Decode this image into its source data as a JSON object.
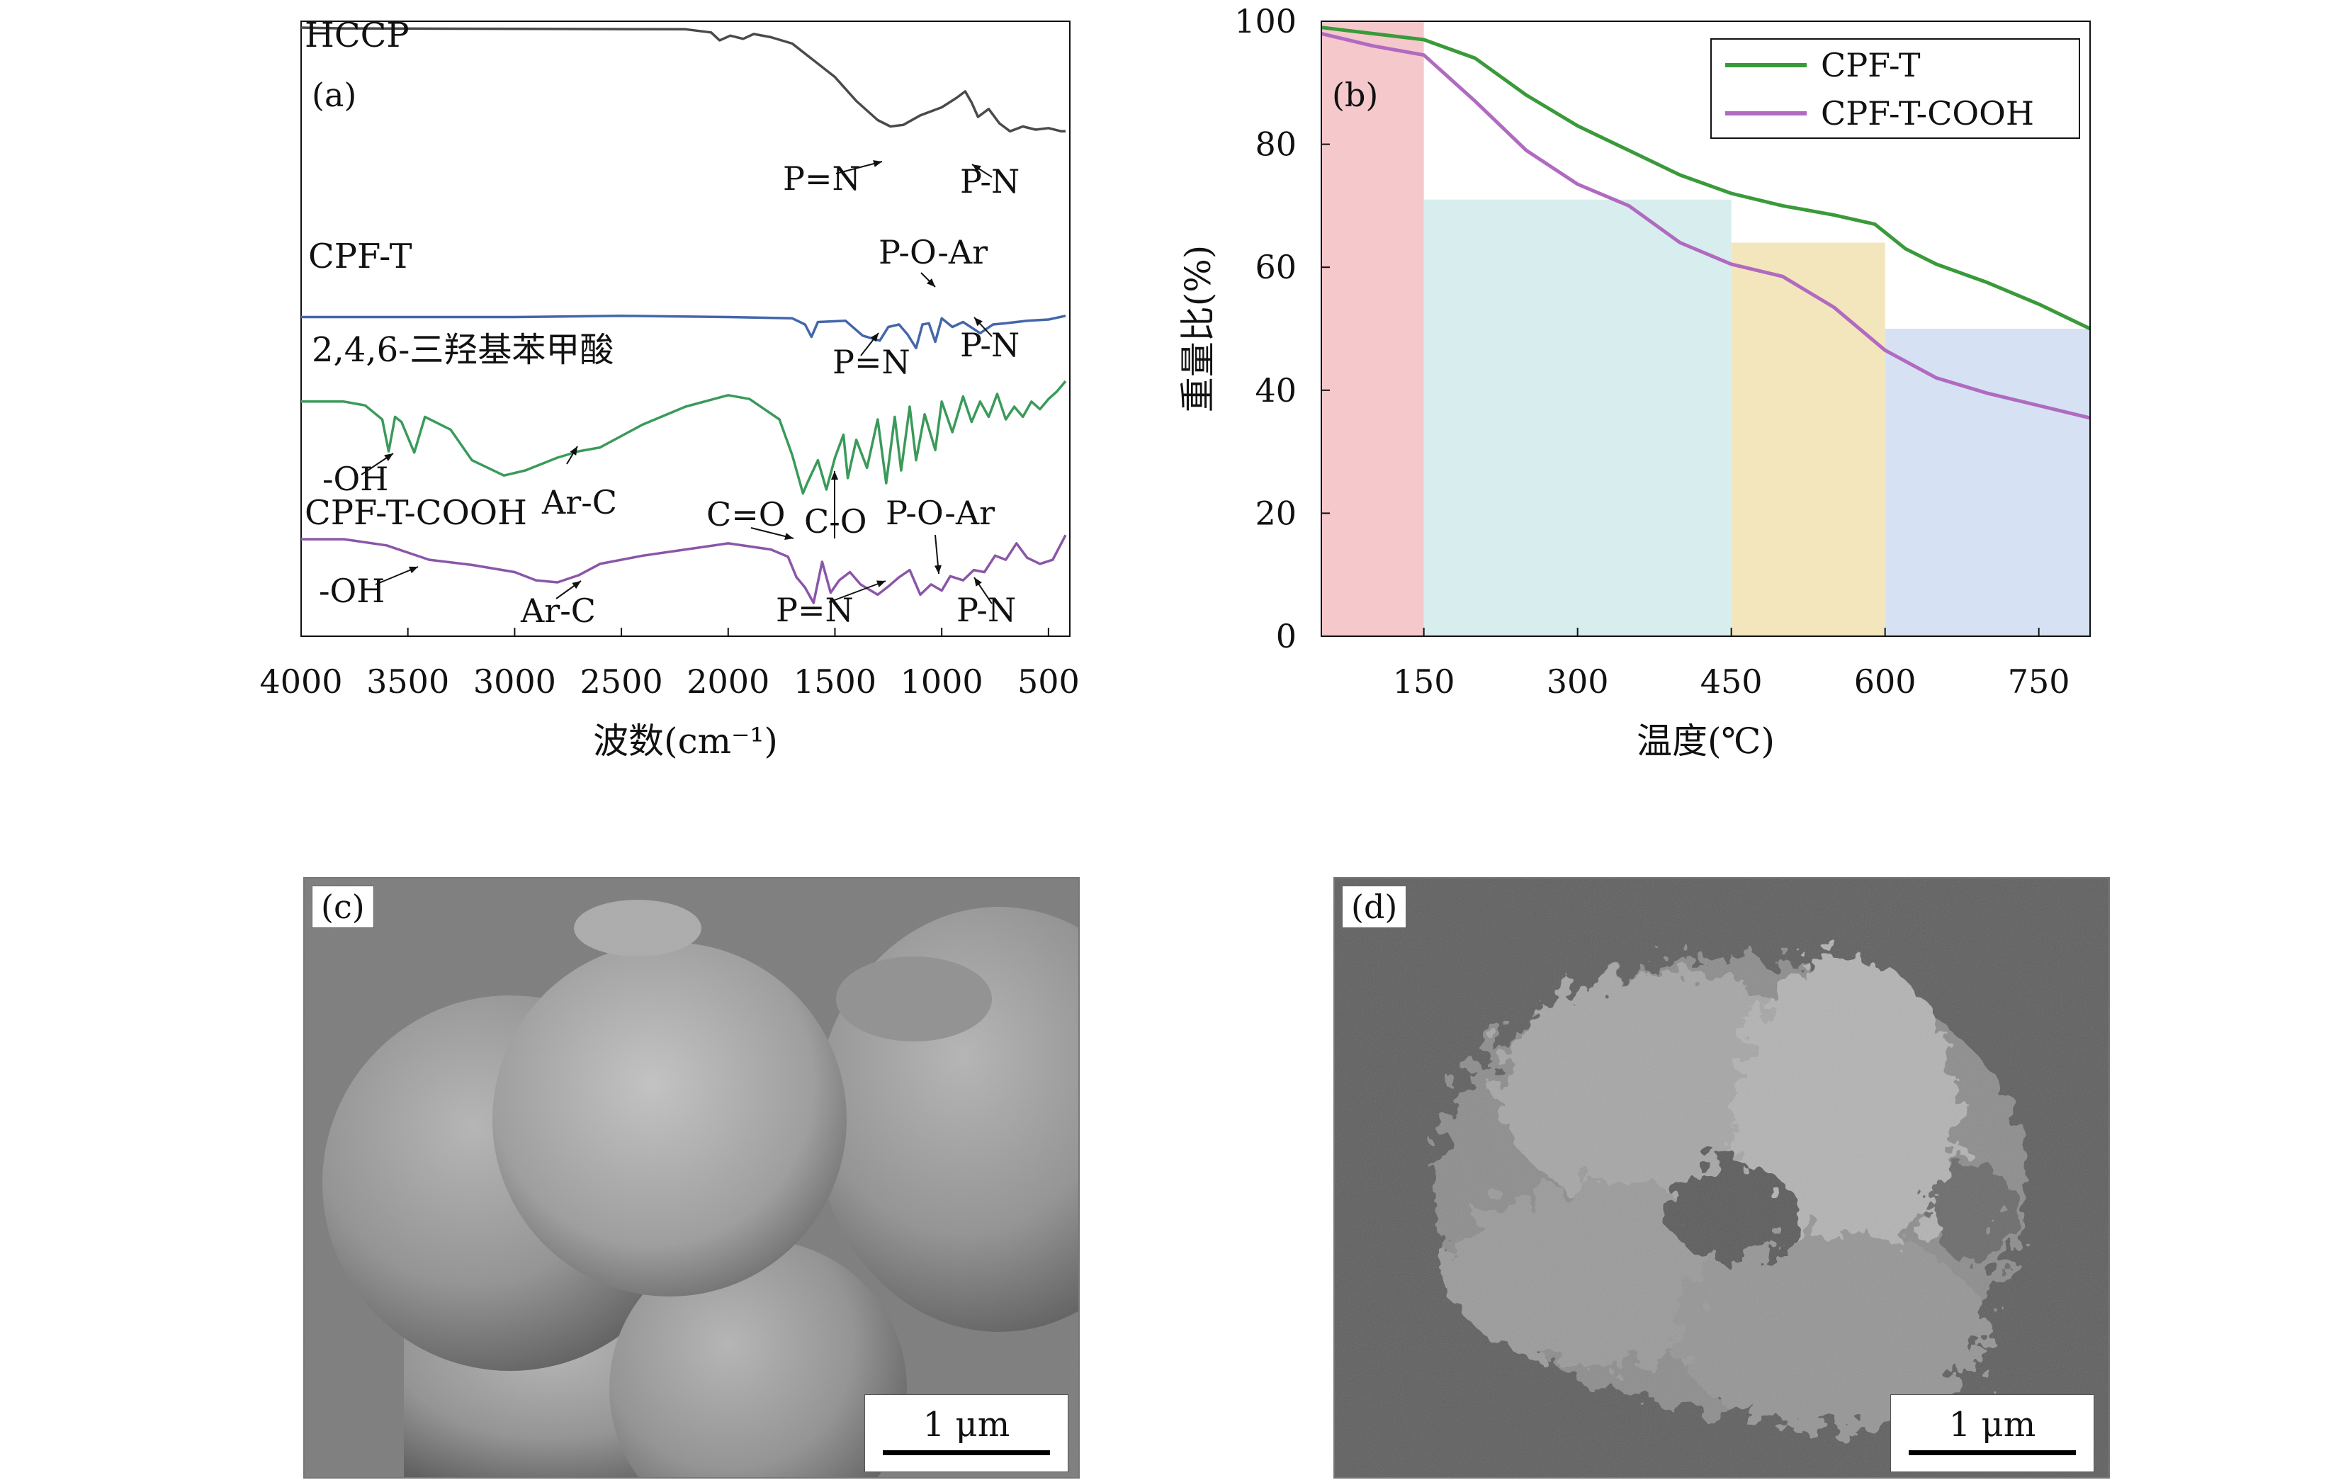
{
  "chart_data": [
    {
      "panel": "(a)",
      "type": "line",
      "xlabel": "波数(cm⁻¹)",
      "x_ticks": [
        4000,
        3500,
        3000,
        2500,
        2000,
        1500,
        1000,
        500
      ],
      "xlim": [
        4000,
        400
      ],
      "y_axis_shown": false,
      "series": [
        {
          "name": "HCCP",
          "color": "#4a4a4a",
          "x": [
            4000,
            3800,
            2200,
            2080,
            2040,
            1990,
            1930,
            1880,
            1800,
            1700,
            1500,
            1400,
            1300,
            1240,
            1180,
            1100,
            1000,
            930,
            890,
            860,
            830,
            780,
            730,
            680,
            620,
            560,
            500,
            440,
            420
          ],
          "y": [
            0.96,
            0.955,
            0.95,
            0.93,
            0.88,
            0.91,
            0.89,
            0.92,
            0.9,
            0.86,
            0.65,
            0.5,
            0.38,
            0.34,
            0.35,
            0.41,
            0.46,
            0.52,
            0.56,
            0.49,
            0.4,
            0.45,
            0.36,
            0.31,
            0.34,
            0.32,
            0.33,
            0.31,
            0.31
          ]
        },
        {
          "name": "CPF-T",
          "color": "#4466aa",
          "x": [
            4000,
            3500,
            3000,
            2500,
            2000,
            1700,
            1640,
            1610,
            1580,
            1450,
            1370,
            1290,
            1250,
            1200,
            1160,
            1120,
            1090,
            1060,
            1030,
            1000,
            950,
            900,
            820,
            760,
            700,
            600,
            500,
            420
          ],
          "y": [
            0.5,
            0.5,
            0.5,
            0.51,
            0.5,
            0.49,
            0.44,
            0.34,
            0.46,
            0.47,
            0.35,
            0.31,
            0.42,
            0.44,
            0.36,
            0.25,
            0.44,
            0.45,
            0.3,
            0.49,
            0.42,
            0.46,
            0.37,
            0.44,
            0.45,
            0.47,
            0.48,
            0.51
          ]
        },
        {
          "name": "2,4,6-三羟基苯甲酸",
          "color": "#3a9a5a",
          "x": [
            4000,
            3800,
            3700,
            3620,
            3590,
            3560,
            3530,
            3470,
            3420,
            3300,
            3200,
            3050,
            2950,
            2800,
            2700,
            2600,
            2400,
            2200,
            2000,
            1900,
            1760,
            1700,
            1650,
            1630,
            1580,
            1540,
            1500,
            1460,
            1440,
            1400,
            1350,
            1300,
            1260,
            1220,
            1190,
            1150,
            1120,
            1080,
            1030,
            1000,
            950,
            900,
            860,
            820,
            780,
            740,
            700,
            660,
            620,
            580,
            540,
            500,
            460,
            420
          ],
          "y": [
            0.74,
            0.74,
            0.71,
            0.6,
            0.35,
            0.62,
            0.58,
            0.34,
            0.62,
            0.52,
            0.28,
            0.16,
            0.2,
            0.3,
            0.35,
            0.38,
            0.56,
            0.7,
            0.79,
            0.76,
            0.6,
            0.32,
            0.02,
            0.1,
            0.28,
            0.05,
            0.3,
            0.48,
            0.14,
            0.44,
            0.22,
            0.6,
            0.1,
            0.62,
            0.2,
            0.7,
            0.28,
            0.64,
            0.36,
            0.74,
            0.5,
            0.78,
            0.58,
            0.74,
            0.62,
            0.8,
            0.6,
            0.7,
            0.62,
            0.74,
            0.68,
            0.76,
            0.82,
            0.9
          ]
        },
        {
          "name": "CPF-T-COOH",
          "color": "#8a56a8",
          "x": [
            4000,
            3800,
            3600,
            3400,
            3200,
            3000,
            2900,
            2800,
            2700,
            2600,
            2400,
            2200,
            2000,
            1800,
            1720,
            1680,
            1640,
            1600,
            1560,
            1520,
            1480,
            1430,
            1380,
            1300,
            1250,
            1200,
            1150,
            1100,
            1050,
            1000,
            960,
            900,
            850,
            800,
            750,
            700,
            650,
            600,
            540,
            480,
            420
          ],
          "y": [
            0.82,
            0.82,
            0.76,
            0.62,
            0.57,
            0.5,
            0.42,
            0.4,
            0.47,
            0.58,
            0.66,
            0.72,
            0.78,
            0.72,
            0.65,
            0.45,
            0.35,
            0.2,
            0.6,
            0.3,
            0.42,
            0.5,
            0.38,
            0.28,
            0.36,
            0.45,
            0.52,
            0.28,
            0.38,
            0.32,
            0.46,
            0.42,
            0.52,
            0.5,
            0.66,
            0.62,
            0.78,
            0.64,
            0.58,
            0.62,
            0.86
          ]
        }
      ],
      "annotations": [
        "P=N",
        "P-N",
        "P-O-Ar",
        "P=N",
        "P-N",
        "-OH",
        "Ar-C",
        "C=O",
        "C-O",
        "P-O-Ar",
        "-OH",
        "Ar-C",
        "P=N",
        "P-N"
      ]
    },
    {
      "panel": "(b)",
      "type": "line",
      "xlabel": "温度(℃)",
      "ylabel": "重量比(%)",
      "xlim": [
        50,
        800
      ],
      "ylim": [
        0,
        100
      ],
      "x_ticks": [
        150,
        300,
        450,
        600,
        750
      ],
      "y_ticks": [
        0,
        20,
        40,
        60,
        80,
        100
      ],
      "legend_position": "top-right",
      "shaded_regions": [
        {
          "x": [
            50,
            150
          ],
          "top": 100,
          "color": "#f5c8cc"
        },
        {
          "x": [
            150,
            450
          ],
          "top": 71,
          "color": "#d8eeee"
        },
        {
          "x": [
            450,
            600
          ],
          "top": 64,
          "color": "#f3e6bd"
        },
        {
          "x": [
            600,
            800
          ],
          "top": 50,
          "color": "#d6e2f3"
        }
      ],
      "series": [
        {
          "name": "CPF-T",
          "color": "#3a9a3a",
          "x": [
            50,
            100,
            150,
            200,
            250,
            300,
            350,
            400,
            450,
            500,
            550,
            590,
            620,
            650,
            700,
            750,
            800
          ],
          "y": [
            99,
            98,
            97,
            94,
            88,
            83,
            79,
            75,
            72,
            70,
            68.5,
            67,
            63,
            60.5,
            57.5,
            54,
            50
          ]
        },
        {
          "name": "CPF-T-COOH",
          "color": "#b06ac0",
          "x": [
            50,
            100,
            150,
            200,
            250,
            300,
            350,
            400,
            450,
            500,
            550,
            600,
            650,
            700,
            750,
            800
          ],
          "y": [
            98,
            96,
            94.5,
            87,
            79,
            73.5,
            70,
            64,
            60.5,
            58.5,
            53.5,
            46.5,
            42,
            39.5,
            37.5,
            35.5
          ]
        }
      ]
    }
  ],
  "panels": {
    "a": {
      "label": "(a)"
    },
    "b": {
      "label": "(b)"
    },
    "c": {
      "label": "(c)",
      "scale": "1 μm"
    },
    "d": {
      "label": "(d)",
      "scale": "1 μm"
    }
  }
}
